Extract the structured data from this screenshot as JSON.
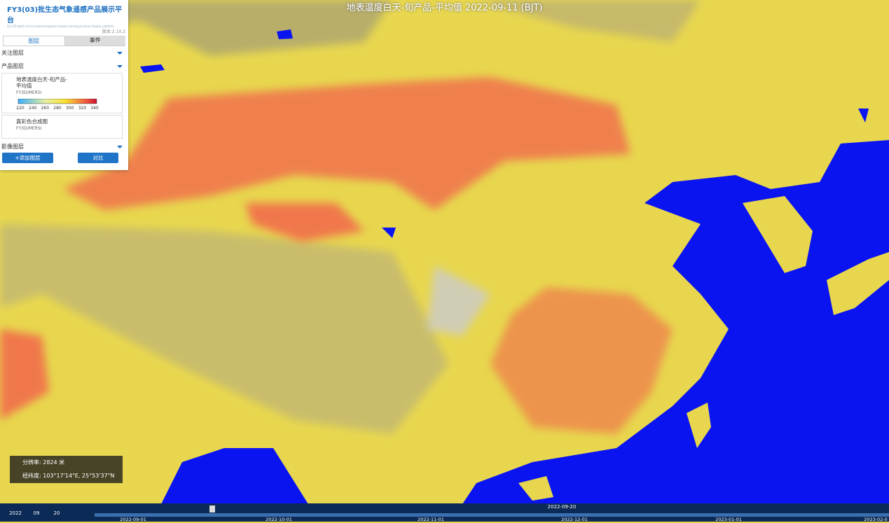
{
  "header": {
    "title": "FY3(03)批生态气象遥感产品展示平台",
    "subtitle": "Fy3 03 batch of eco-meteorological remote sensing product display platform",
    "version": "版本:2.10.2"
  },
  "tabs": [
    "图层",
    "事件"
  ],
  "sections": {
    "favorite": "关注图层",
    "product": "产品图层",
    "image": "影像图层"
  },
  "layers": [
    {
      "name": "地表温度白天-旬产品-平均值",
      "source": "FY3D/MERSI",
      "legend_ticks": [
        220,
        240,
        260,
        280,
        300,
        320,
        340
      ]
    },
    {
      "name": "真彩色合成图",
      "source": "FY3D/MERSI"
    }
  ],
  "buttons": {
    "add": "+添加图层",
    "compare": "对比"
  },
  "map": {
    "title": "地表温度白天-旬产品-平均值 2022-09-11 (BJT)"
  },
  "info": {
    "resolution_label": "分辨率:",
    "resolution": "2824 米",
    "coord_label": "经纬度:",
    "coord": "103°17'14\"E, 25°53'37\"N"
  },
  "timeline": {
    "year": "2022",
    "month": "09",
    "day": "20",
    "current": "2022-09-20",
    "dates": [
      "2022-09-01",
      "2022-10-01",
      "2022-11-01",
      "2022-12-01",
      "2023-01-01",
      "2023-02-0"
    ]
  }
}
